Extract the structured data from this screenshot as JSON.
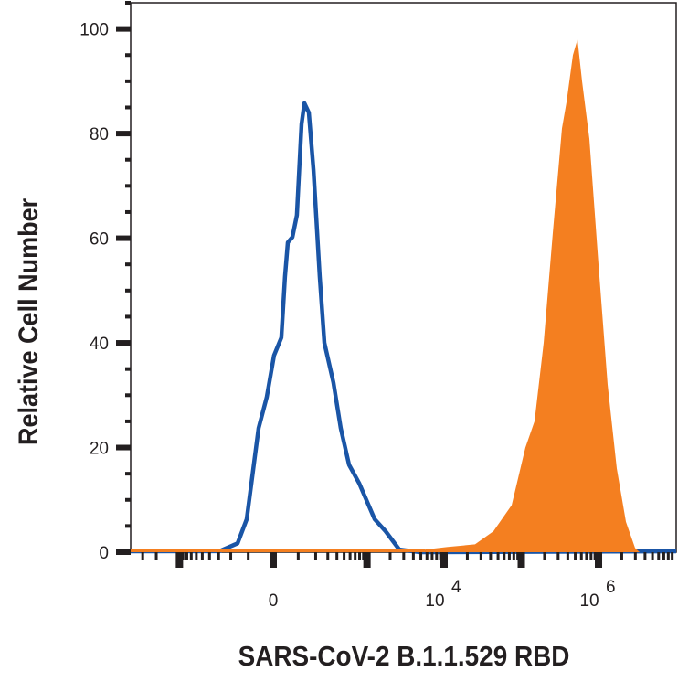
{
  "chart_data": {
    "type": "area",
    "title": "",
    "xlabel": "SARS-CoV-2 B.1.1.529 RBD",
    "ylabel": "Relative Cell Number",
    "x_scale": "biexponential",
    "ylim": [
      0,
      105
    ],
    "yticks": [
      0,
      20,
      40,
      60,
      80,
      100
    ],
    "xtick_labels": [
      {
        "value": 0,
        "base": "0",
        "exp": ""
      },
      {
        "value": 10000,
        "base": "10",
        "exp": "4"
      },
      {
        "value": 1000000,
        "base": "10",
        "exp": "6"
      }
    ],
    "grid": false,
    "series": [
      {
        "style": "outline",
        "color": "#1a55a6",
        "x": [
          -293,
          -156,
          -107,
          -55,
          -24,
          3,
          30,
          44,
          55,
          74,
          94,
          116,
          131,
          156,
          185,
          230,
          268,
          359,
          451,
          582,
          788,
          1259,
          1747,
          2629,
          4925
        ],
        "y": [
          0.2,
          1.7,
          6.3,
          23.7,
          29.6,
          37.6,
          41.0,
          52.7,
          59.2,
          60.2,
          64.4,
          81.8,
          85.8,
          84.0,
          73.0,
          52.7,
          40.0,
          32.4,
          23.7,
          16.7,
          13.2,
          6.3,
          4.0,
          0.5,
          0
        ]
      },
      {
        "style": "filled",
        "color": "#f47f20",
        "x": [
          5650,
          11150,
          25200,
          43500,
          75200,
          113000,
          148500,
          194800,
          256000,
          336000,
          385000,
          466000,
          534000,
          612000,
          761000,
          1000000,
          1313000,
          1725000,
          2264000,
          2973000,
          3406000
        ],
        "y": [
          0.5,
          1.0,
          1.5,
          4,
          9,
          20,
          25,
          40,
          61,
          81,
          86,
          95,
          98,
          90,
          79,
          55,
          32,
          16,
          5.8,
          0.8,
          0
        ]
      }
    ]
  }
}
